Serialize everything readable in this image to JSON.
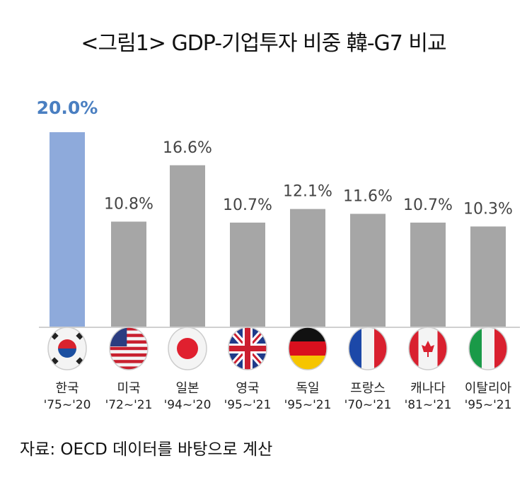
{
  "chart_data": {
    "type": "bar",
    "title": "<그림1> GDP-기업투자 비중 韓-G7 비교",
    "categories": [
      "한국",
      "미국",
      "일본",
      "영국",
      "독일",
      "프랑스",
      "캐나다",
      "이탈리아"
    ],
    "periods": [
      "'75~'20",
      "'72~'21",
      "'94~'20",
      "'95~'21",
      "'95~'21",
      "'70~'21",
      "'81~'21",
      "'95~'21"
    ],
    "flags": [
      "korea-flag",
      "usa-flag",
      "japan-flag",
      "uk-flag",
      "germany-flag",
      "france-flag",
      "canada-flag",
      "italy-flag"
    ],
    "values": [
      20.0,
      10.8,
      16.6,
      10.7,
      12.1,
      11.6,
      10.7,
      10.3
    ],
    "labels": [
      "20.0%",
      "10.8%",
      "16.6%",
      "10.7%",
      "12.1%",
      "11.6%",
      "10.7%",
      "10.3%"
    ],
    "ylim": [
      0,
      20
    ],
    "grid": false,
    "colors": {
      "highlight": "#8eaadb",
      "highlight_label": "#4a7fc1",
      "bar": "#a6a6a6",
      "label": "#444444"
    },
    "source": "자료: OECD 데이터를 바탕으로 계산"
  }
}
